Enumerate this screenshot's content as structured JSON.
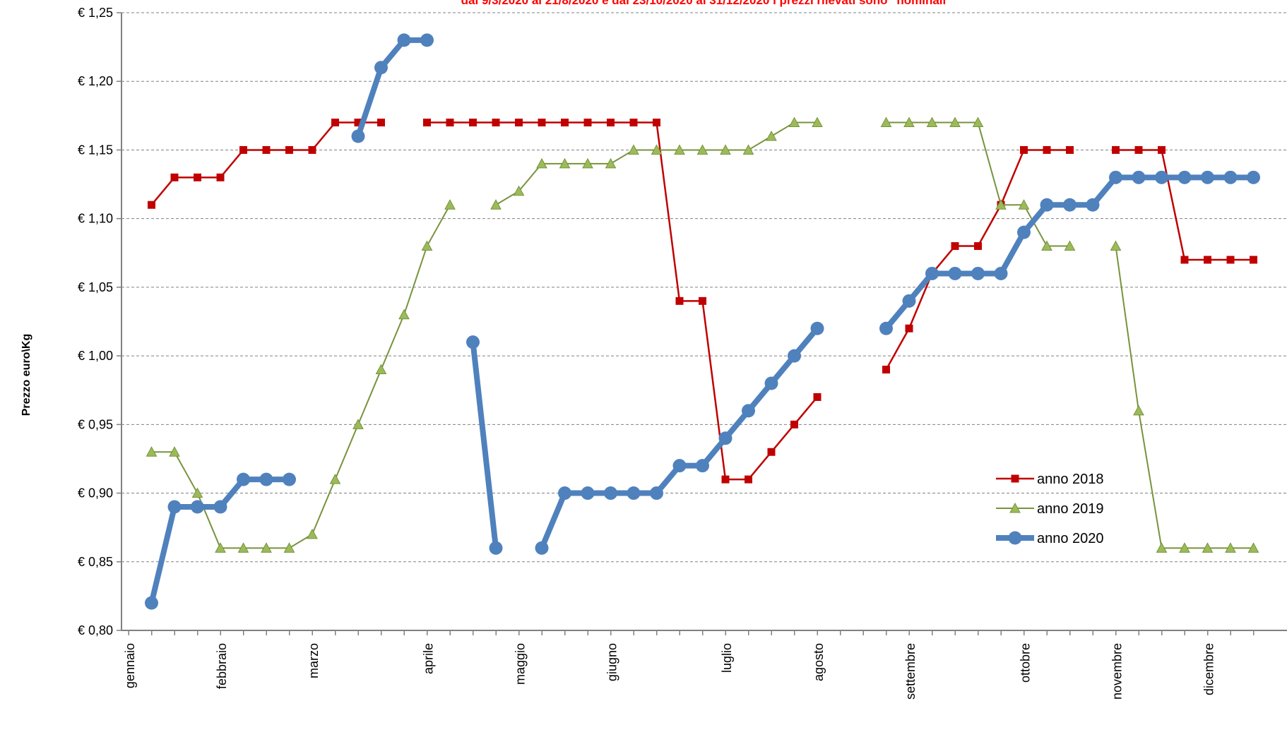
{
  "chart_data": {
    "type": "line",
    "title_fragment": "dal 9/3/2020 al 21/8/2020 e dal 23/10/2020 al 31/12/2020 i prezzi rilevati sono \"nominali\"",
    "ylabel": "Prezzo euro\\Kg",
    "ylim": [
      0.8,
      1.25
    ],
    "ytick_step": 0.05,
    "ytick_labels": [
      "€ 0,80",
      "€ 0,85",
      "€ 0,90",
      "€ 0,95",
      "€ 1,00",
      "€ 1,05",
      "€ 1,10",
      "€ 1,15",
      "€ 1,20",
      "€ 1,25"
    ],
    "grid": true,
    "legend_position": "right-middle",
    "month_labels": [
      {
        "label": "gennaio",
        "week": 0
      },
      {
        "label": "febbraio",
        "week": 4
      },
      {
        "label": "marzo",
        "week": 8
      },
      {
        "label": "aprile",
        "week": 13
      },
      {
        "label": "maggio",
        "week": 17
      },
      {
        "label": "giugno",
        "week": 21
      },
      {
        "label": "luglio",
        "week": 26
      },
      {
        "label": "agosto",
        "week": 30
      },
      {
        "label": "settembre",
        "week": 34
      },
      {
        "label": "ottobre",
        "week": 39
      },
      {
        "label": "novembre",
        "week": 43
      },
      {
        "label": "dicembre",
        "week": 47
      }
    ],
    "weeks": 49,
    "series": [
      {
        "name": "anno 2018",
        "color": "#c00000",
        "marker": "square",
        "values": [
          null,
          1.11,
          1.13,
          1.13,
          1.13,
          1.15,
          1.15,
          1.15,
          1.15,
          1.17,
          1.17,
          1.17,
          null,
          1.17,
          1.17,
          1.17,
          1.17,
          1.17,
          1.17,
          1.17,
          1.17,
          1.17,
          1.17,
          1.17,
          1.04,
          1.04,
          0.91,
          0.91,
          0.93,
          0.95,
          0.97,
          null,
          null,
          0.99,
          1.02,
          1.06,
          1.08,
          1.08,
          1.11,
          1.15,
          1.15,
          1.15,
          null,
          1.15,
          1.15,
          1.15,
          1.07,
          1.07,
          1.07,
          1.07
        ]
      },
      {
        "name": "anno 2019",
        "color": "#77933c",
        "marker": "triangle",
        "values": [
          null,
          0.93,
          0.93,
          0.9,
          0.86,
          0.86,
          0.86,
          0.86,
          0.87,
          0.91,
          0.95,
          0.99,
          1.03,
          1.08,
          1.11,
          null,
          1.11,
          1.12,
          1.14,
          1.14,
          1.14,
          1.14,
          1.15,
          1.15,
          1.15,
          1.15,
          1.15,
          1.15,
          1.16,
          1.17,
          1.17,
          null,
          null,
          1.17,
          1.17,
          1.17,
          1.17,
          1.17,
          1.11,
          1.11,
          1.08,
          1.08,
          null,
          1.08,
          0.96,
          0.86,
          0.86,
          0.86,
          0.86,
          0.86
        ]
      },
      {
        "name": "anno 2020",
        "color": "#4f81bd",
        "marker": "circle",
        "values": [
          null,
          0.82,
          0.89,
          0.89,
          0.89,
          0.91,
          0.91,
          0.91,
          null,
          null,
          1.16,
          1.21,
          1.23,
          1.23,
          null,
          1.01,
          0.86,
          null,
          0.86,
          0.9,
          0.9,
          0.9,
          0.9,
          0.9,
          0.92,
          0.92,
          0.94,
          0.96,
          0.98,
          1.0,
          1.02,
          null,
          null,
          1.02,
          1.04,
          1.06,
          1.06,
          1.06,
          1.06,
          1.09,
          1.11,
          1.11,
          1.11,
          1.13,
          1.13,
          1.13,
          1.13,
          1.13,
          1.13,
          1.13
        ]
      }
    ]
  }
}
